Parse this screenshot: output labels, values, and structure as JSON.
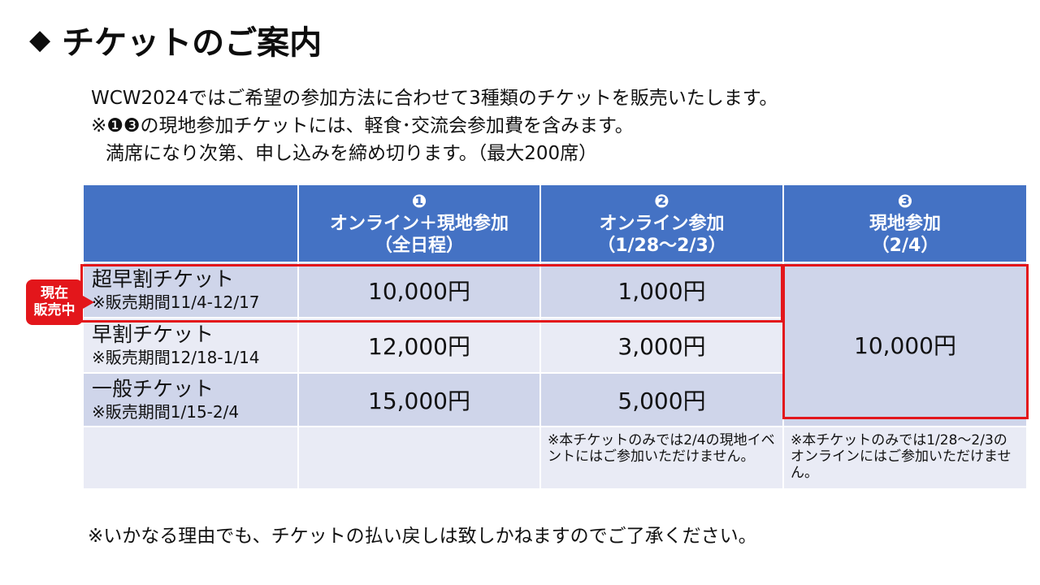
{
  "title": {
    "icon": "◆",
    "text": "チケットのご案内"
  },
  "intro": {
    "line1": "WCW2024ではご希望の参加方法に合わせて3種類のチケットを販売いたします。",
    "line2": "※❶❸の現地参加チケットには、軽食･交流会参加費を含みます。",
    "line3": "満席になり次第、申し込みを締め切ります。（最大200席）"
  },
  "table": {
    "headers": [
      {
        "num": "❶",
        "name": "オンライン＋現地参加",
        "sub": "（全日程）"
      },
      {
        "num": "❷",
        "name": "オンライン参加",
        "sub": "（1/28～2/3）"
      },
      {
        "num": "❸",
        "name": "現地参加",
        "sub": "（2/4）"
      }
    ],
    "rows": [
      {
        "name": "超早割チケット",
        "period": "※販売期間11/4-12/17",
        "price1": "10,000円",
        "price2": "1,000円"
      },
      {
        "name": "早割チケット",
        "period": "※販売期間12/18-1/14",
        "price1": "12,000円",
        "price2": "3,000円"
      },
      {
        "name": "一般チケット",
        "period": "※販売期間1/15-2/4",
        "price1": "15,000円",
        "price2": "5,000円"
      }
    ],
    "price3": "10,000円",
    "notes": {
      "col2": "※本チケットのみでは2/4の現地イベントにはご参加いただけません。",
      "col3": "※本チケットのみでは1/28～2/3のオンラインにはご参加いただけません。"
    }
  },
  "badge": {
    "line1": "現在",
    "line2": "販売中"
  },
  "footer": "※いかなる理由でも、チケットの払い戻しは致しかねますのでご了承ください。",
  "colors": {
    "header": "#4472c4",
    "row_dark": "#cfd5ea",
    "row_light": "#e9ebf5",
    "highlight": "#e3161b"
  }
}
